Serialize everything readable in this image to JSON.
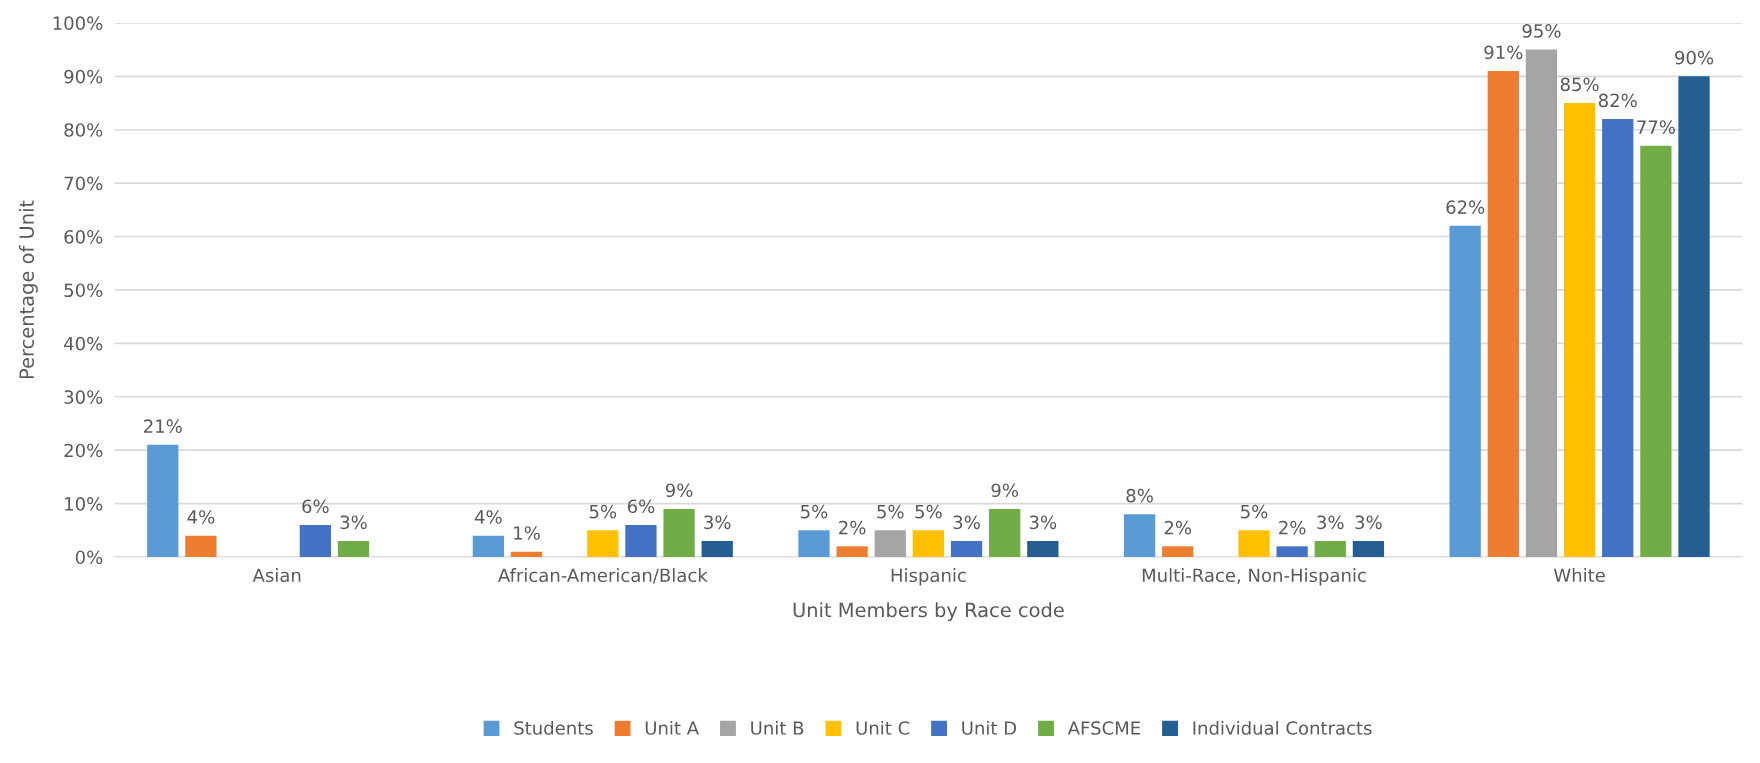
{
  "chart_data": {
    "type": "bar",
    "xlabel": "Unit Members by Race code",
    "ylabel": "Percentage of Unit",
    "categories": [
      "Asian",
      "African-American/Black",
      "Hispanic",
      "Multi-Race, Non-Hispanic",
      "White"
    ],
    "series": [
      {
        "name": "Students",
        "color": "#5b9bd5",
        "values": [
          21,
          4,
          5,
          8,
          62
        ],
        "value_labels": [
          "21%",
          "4%",
          "5%",
          "8%",
          "62%"
        ]
      },
      {
        "name": "Unit A",
        "color": "#ed7d31",
        "values": [
          4,
          1,
          2,
          2,
          91
        ],
        "value_labels": [
          "4%",
          "1%",
          "2%",
          "2%",
          "91%"
        ]
      },
      {
        "name": "Unit B",
        "color": "#a5a5a5",
        "values": [
          null,
          null,
          5,
          null,
          95
        ],
        "value_labels": [
          null,
          null,
          "5%",
          null,
          "95%"
        ]
      },
      {
        "name": "Unit C",
        "color": "#ffc000",
        "values": [
          null,
          5,
          5,
          5,
          85
        ],
        "value_labels": [
          null,
          "5%",
          "5%",
          "5%",
          "85%"
        ]
      },
      {
        "name": "Unit D",
        "color": "#4472c4",
        "values": [
          6,
          6,
          3,
          2,
          82
        ],
        "value_labels": [
          "6%",
          "6%",
          "3%",
          "2%",
          "82%"
        ]
      },
      {
        "name": "AFSCME",
        "color": "#70ad47",
        "values": [
          3,
          9,
          9,
          3,
          77
        ],
        "value_labels": [
          "3%",
          "9%",
          "9%",
          "3%",
          "77%"
        ]
      },
      {
        "name": "Individual Contracts",
        "color": "#255e91",
        "values": [
          null,
          3,
          3,
          3,
          90
        ],
        "value_labels": [
          null,
          "3%",
          "3%",
          "3%",
          "90%"
        ]
      }
    ],
    "ylim": [
      0,
      100
    ],
    "yticks": [
      {
        "value": 0,
        "label": "0%"
      },
      {
        "value": 10,
        "label": "10%"
      },
      {
        "value": 20,
        "label": "20%"
      },
      {
        "value": 30,
        "label": "30%"
      },
      {
        "value": 40,
        "label": "40%"
      },
      {
        "value": 50,
        "label": "50%"
      },
      {
        "value": 60,
        "label": "60%"
      },
      {
        "value": 70,
        "label": "70%"
      },
      {
        "value": 80,
        "label": "80%"
      },
      {
        "value": 90,
        "label": "90%"
      },
      {
        "value": 100,
        "label": "100%"
      }
    ],
    "grid": "y",
    "legend": "bottom"
  }
}
